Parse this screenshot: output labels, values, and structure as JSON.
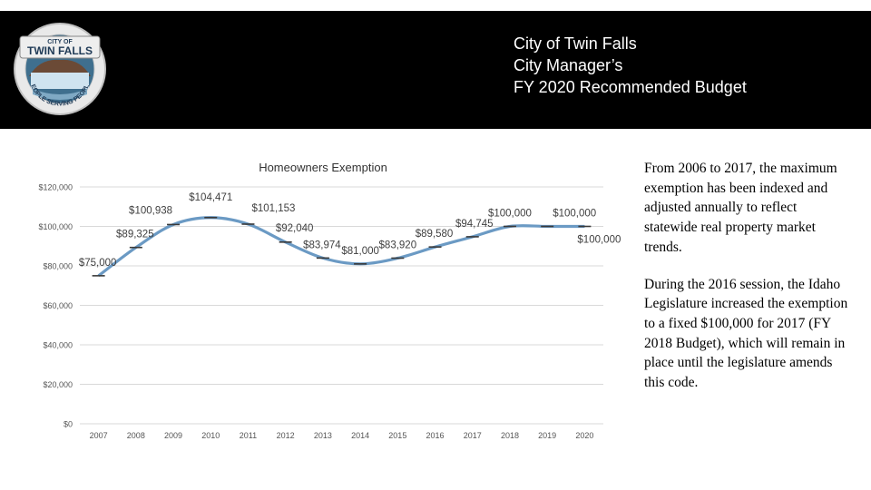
{
  "header": {
    "logo_text": {
      "top": "CITY OF",
      "main": "TWIN FALLS",
      "ring": "PEOPLE SERVING PEOPLE"
    },
    "title_lines": [
      "City of Twin Falls",
      "City Manager’s",
      "FY 2020 Recommended Budget"
    ]
  },
  "colors": {
    "header_bg": "#000000",
    "line": "#6b9ac4",
    "marker": "#3a3a3a",
    "grid": "#d9d9d9"
  },
  "chart_data": {
    "type": "line",
    "title": "Homeowners Exemption",
    "xlabel": "",
    "ylabel": "",
    "ylim": [
      0,
      120000
    ],
    "grid": true,
    "y_ticks": [
      0,
      20000,
      40000,
      60000,
      80000,
      100000,
      120000
    ],
    "y_tick_labels": [
      "$0",
      "$20,000",
      "$40,000",
      "$60,000",
      "$80,000",
      "$100,000",
      "$120,000"
    ],
    "categories": [
      "2007",
      "2008",
      "2009",
      "2010",
      "2011",
      "2012",
      "2013",
      "2014",
      "2015",
      "2016",
      "2017",
      "2018",
      "2019",
      "2020"
    ],
    "series": [
      {
        "values": [
          75000,
          89325,
          100938,
          104471,
          101153,
          92040,
          83974,
          81000,
          83920,
          89580,
          94745,
          100000,
          100000,
          100000
        ]
      }
    ],
    "data_labels": [
      "$75,000",
      "$89,325",
      "$100,938",
      "$104,471",
      "$101,153",
      "$92,040",
      "$83,974",
      "$81,000",
      "$83,920",
      "$89,580",
      "$94,745",
      "$100,000",
      "$100,000",
      "$100,000"
    ]
  },
  "side_text": {
    "p1": "From 2006 to 2017, the maximum exemption has been indexed and adjusted annually to reflect statewide real property market trends.",
    "p2": "During the 2016 session, the Idaho Legislature increased the exemption to a fixed $100,000 for 2017 (FY 2018 Budget), which will remain in place until the legislature amends this code."
  }
}
